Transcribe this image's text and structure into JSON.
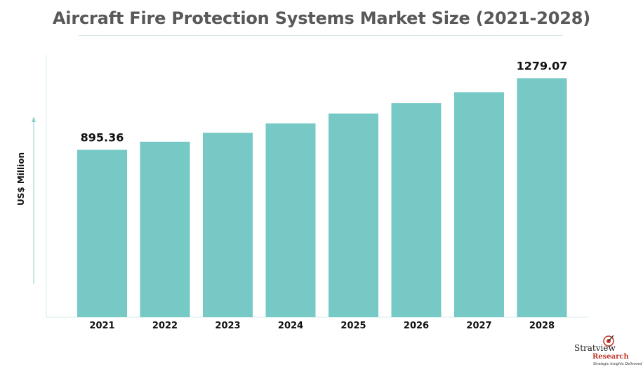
{
  "chart_data": {
    "type": "bar",
    "title": "Aircraft Fire Protection Systems Market Size (2021-2028)",
    "ylabel": "US$ Million",
    "xlabel": "",
    "categories": [
      "2021",
      "2022",
      "2023",
      "2024",
      "2025",
      "2026",
      "2027",
      "2028"
    ],
    "values": [
      895.36,
      939,
      987,
      1037,
      1090,
      1145,
      1204,
      1279.07
    ],
    "data_labels": {
      "0": "895.36",
      "7": "1279.07"
    },
    "ylim": [
      0,
      1400
    ],
    "grid": false,
    "bar_color": "#76c9c5"
  },
  "brand": {
    "name_top": "Stratview",
    "name_bottom": "Research",
    "tagline": "Strategic Insights Delivered"
  },
  "colors": {
    "bar": "#76c9c5",
    "axis": "#d5ece9",
    "title": "#595959"
  }
}
